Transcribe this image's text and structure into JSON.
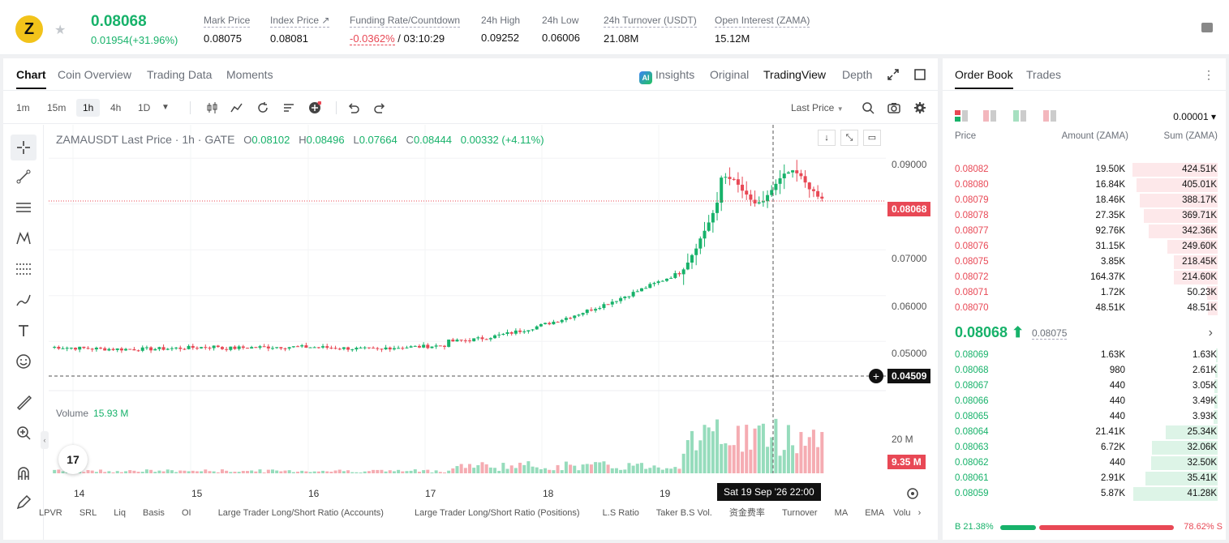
{
  "ticker": {
    "logo_letter": "Z",
    "last_price": "0.08068",
    "change": "0.01954(+31.96%)",
    "stats": [
      {
        "label": "Mark Price",
        "value": "0.08075"
      },
      {
        "label": "Index Price ↗",
        "value": "0.08081"
      },
      {
        "label": "Funding Rate/Countdown",
        "value_neg": "-0.0362%",
        "value": "/ 03:10:29"
      },
      {
        "label": "24h High",
        "value": "0.09252"
      },
      {
        "label": "24h Low",
        "value": "0.06006"
      },
      {
        "label": "24h Turnover (USDT)",
        "value": "21.08M"
      },
      {
        "label": "Open Interest (ZAMA)",
        "value": "15.12M"
      }
    ]
  },
  "chart_tabs": [
    "Chart",
    "Coin Overview",
    "Trading Data",
    "Moments"
  ],
  "chart_views": {
    "insights": "Insights",
    "original": "Original",
    "tradingview": "TradingView",
    "depth": "Depth",
    "ai_badge": "AI"
  },
  "timeframes": [
    "1m",
    "15m",
    "1h",
    "4h",
    "1D"
  ],
  "price_type": "Last Price",
  "legend": {
    "symbol": "ZAMAUSDT Last Price · 1h · GATE",
    "o_lbl": "O",
    "o": "0.08102",
    "h_lbl": "H",
    "h": "0.08496",
    "l_lbl": "L",
    "l": "0.07664",
    "c_lbl": "C",
    "c": "0.08444",
    "chg": "0.00332 (+4.11%)"
  },
  "volume": {
    "label": "Volume",
    "value": "15.93 M"
  },
  "y_axis": [
    "0.09000",
    "0.08068",
    "0.07000",
    "0.06000",
    "0.05000",
    "0.04509"
  ],
  "vol_axis": [
    "20 M",
    "9.35 M"
  ],
  "x_axis": [
    "14",
    "15",
    "16",
    "17",
    "18",
    "19"
  ],
  "crosshair_time": "Sat 19 Sep '26   22:00",
  "indicators": [
    "LPVR",
    "SRL",
    "Liq",
    "Basis",
    "OI",
    "Large Trader Long/Short Ratio (Accounts)",
    "Large Trader Long/Short Ratio (Positions)",
    "L.S Ratio",
    "Taker B.S Vol.",
    "资金费率",
    "Turnover",
    "MA",
    "EMA",
    "Volu"
  ],
  "tv_logo": "17",
  "colors": {
    "up": "#17b26a",
    "down": "#e84855"
  },
  "orderbook": {
    "tabs": [
      "Order Book",
      "Trades"
    ],
    "precision": "0.00001 ▾",
    "headers": {
      "price": "Price",
      "amount": "Amount (ZAMA)",
      "sum": "Sum (ZAMA)"
    },
    "asks": [
      {
        "price": "0.08082",
        "amount": "19.50K",
        "sum": "424.51K",
        "depth": 1.0
      },
      {
        "price": "0.08080",
        "amount": "16.84K",
        "sum": "405.01K",
        "depth": 0.95
      },
      {
        "price": "0.08079",
        "amount": "18.46K",
        "sum": "388.17K",
        "depth": 0.91
      },
      {
        "price": "0.08078",
        "amount": "27.35K",
        "sum": "369.71K",
        "depth": 0.87
      },
      {
        "price": "0.08077",
        "amount": "92.76K",
        "sum": "342.36K",
        "depth": 0.81
      },
      {
        "price": "0.08076",
        "amount": "31.15K",
        "sum": "249.60K",
        "depth": 0.59
      },
      {
        "price": "0.08075",
        "amount": "3.85K",
        "sum": "218.45K",
        "depth": 0.51
      },
      {
        "price": "0.08072",
        "amount": "164.37K",
        "sum": "214.60K",
        "depth": 0.51
      },
      {
        "price": "0.08071",
        "amount": "1.72K",
        "sum": "50.23K",
        "depth": 0.12
      },
      {
        "price": "0.08070",
        "amount": "48.51K",
        "sum": "48.51K",
        "depth": 0.11
      }
    ],
    "mid": {
      "price": "0.08068 ⬆",
      "mark": "0.08075"
    },
    "bids": [
      {
        "price": "0.08069",
        "amount": "1.63K",
        "sum": "1.63K",
        "depth": 0.02
      },
      {
        "price": "0.08068",
        "amount": "980",
        "sum": "2.61K",
        "depth": 0.03
      },
      {
        "price": "0.08067",
        "amount": "440",
        "sum": "3.05K",
        "depth": 0.04
      },
      {
        "price": "0.08066",
        "amount": "440",
        "sum": "3.49K",
        "depth": 0.04
      },
      {
        "price": "0.08065",
        "amount": "440",
        "sum": "3.93K",
        "depth": 0.05
      },
      {
        "price": "0.08064",
        "amount": "21.41K",
        "sum": "25.34K",
        "depth": 0.61
      },
      {
        "price": "0.08063",
        "amount": "6.72K",
        "sum": "32.06K",
        "depth": 0.77
      },
      {
        "price": "0.08062",
        "amount": "440",
        "sum": "32.50K",
        "depth": 0.78
      },
      {
        "price": "0.08061",
        "amount": "2.91K",
        "sum": "35.41K",
        "depth": 0.85
      },
      {
        "price": "0.08059",
        "amount": "5.87K",
        "sum": "41.28K",
        "depth": 0.99
      }
    ],
    "buy_ratio": "B 21.38%",
    "sell_ratio": "78.62% S"
  }
}
